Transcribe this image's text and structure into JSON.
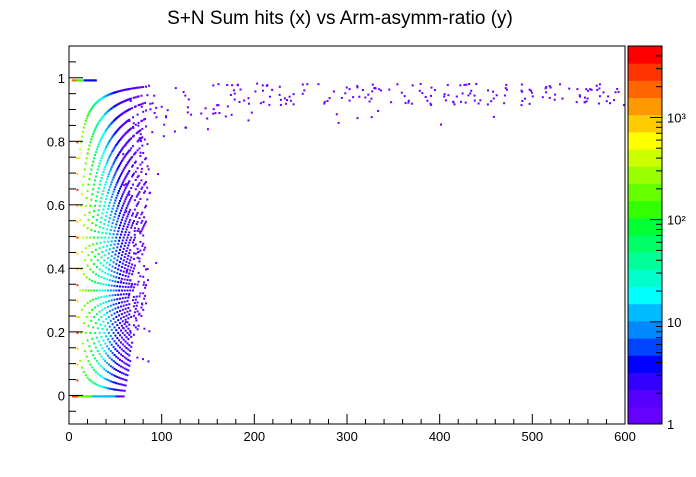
{
  "chart_data": {
    "type": "heatmap",
    "title": "S+N Sum hits (x) vs Arm-asymm-ratio (y)",
    "xlabel": "",
    "ylabel": "",
    "xlim": [
      0,
      600
    ],
    "ylim": [
      -0.09,
      1.1
    ],
    "x_ticks": [
      {
        "value": 0,
        "label": "0"
      },
      {
        "value": 100,
        "label": "100"
      },
      {
        "value": 200,
        "label": "200"
      },
      {
        "value": 300,
        "label": "300"
      },
      {
        "value": 400,
        "label": "400"
      },
      {
        "value": 500,
        "label": "500"
      },
      {
        "value": 600,
        "label": "600"
      }
    ],
    "y_ticks": [
      {
        "value": 0,
        "label": "0"
      },
      {
        "value": 0.2,
        "label": "0.2"
      },
      {
        "value": 0.4,
        "label": "0.4"
      },
      {
        "value": 0.6,
        "label": "0.6"
      },
      {
        "value": 0.8,
        "label": "0.8"
      },
      {
        "value": 1,
        "label": "1"
      }
    ],
    "z_scale": "log",
    "zlim": [
      1,
      5000
    ],
    "z_ticks": [
      {
        "value": 1,
        "label": "1"
      },
      {
        "value": 10,
        "label": "10"
      },
      {
        "value": 100,
        "label": "10²"
      },
      {
        "value": 1000,
        "label": "10³"
      }
    ],
    "palette": [
      "#6600ff",
      "#5500ff",
      "#3300ff",
      "#0000ff",
      "#0044ff",
      "#0088ff",
      "#00bbff",
      "#00ffff",
      "#00ffcc",
      "#00ff99",
      "#00ff66",
      "#00ff33",
      "#33ff00",
      "#66ff00",
      "#99ff00",
      "#ccff00",
      "#ffff00",
      "#ffcc00",
      "#ff9900",
      "#ff6600",
      "#ff3300",
      "#ff0000"
    ],
    "description_series": [
      {
        "region": "band arcs",
        "x_range": [
          5,
          75
        ],
        "y_range": [
          0,
          0.95
        ],
        "counts": "1-5000"
      },
      {
        "region": "high-ratio tail",
        "x_range": [
          80,
          600
        ],
        "y_range": [
          0.85,
          1.0
        ],
        "counts": "1"
      }
    ]
  }
}
